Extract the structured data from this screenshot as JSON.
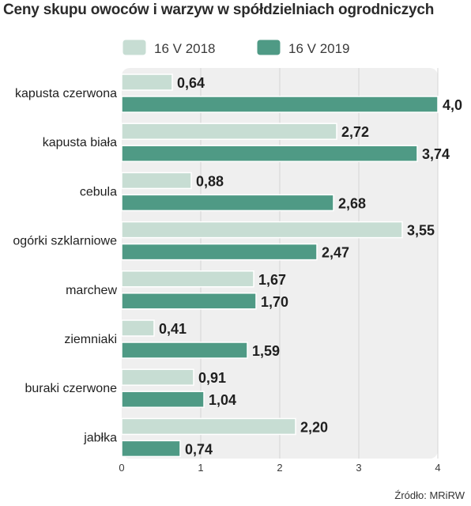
{
  "colors": {
    "series_2018": "#c7ddd3",
    "series_2019": "#4f9a85",
    "plot_bg": "#efefef",
    "grid": "#d4d4d4",
    "text": "#1f1f1f"
  },
  "chart_data": {
    "type": "bar",
    "orientation": "horizontal",
    "title": "Ceny skupu owoców i warzyw w spółdzielniach ogrodniczych",
    "source": "Źródło: MRiRW",
    "categories": [
      "kapusta czerwona",
      "kapusta biała",
      "cebula",
      "ogórki szklarniowe",
      "marchew",
      "ziemniaki",
      "buraki czerwone",
      "jabłka"
    ],
    "series": [
      {
        "name": "16 V 2018",
        "values": [
          0.64,
          2.72,
          0.88,
          3.55,
          1.67,
          0.41,
          0.91,
          2.2
        ],
        "labels": [
          "0,64",
          "2,72",
          "0,88",
          "3,55",
          "1,67",
          "0,41",
          "0,91",
          "2,20"
        ]
      },
      {
        "name": "16 V 2019",
        "values": [
          4.0,
          3.74,
          2.68,
          2.47,
          1.7,
          1.59,
          1.04,
          0.74
        ],
        "labels": [
          "4,0",
          "3,74",
          "2,68",
          "2,47",
          "1,70",
          "1,59",
          "1,04",
          "0,74"
        ]
      }
    ],
    "xlim": [
      0,
      4
    ],
    "xticks": [
      "0",
      "1",
      "2",
      "3",
      "4"
    ],
    "legend_position": "top",
    "grid": true
  }
}
